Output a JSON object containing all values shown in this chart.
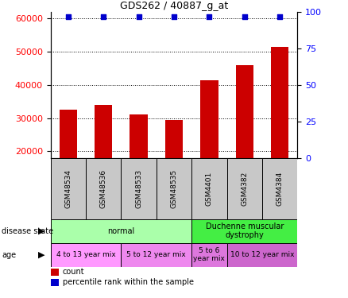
{
  "title": "GDS262 / 40887_g_at",
  "samples": [
    "GSM48534",
    "GSM48536",
    "GSM48533",
    "GSM48535",
    "GSM4401",
    "GSM4382",
    "GSM4384"
  ],
  "counts": [
    32500,
    34000,
    31000,
    29500,
    41500,
    46000,
    51500
  ],
  "ylim_left": [
    18000,
    62000
  ],
  "ylim_right": [
    0,
    100
  ],
  "yticks_left": [
    20000,
    30000,
    40000,
    50000,
    60000
  ],
  "yticks_right": [
    0,
    25,
    50,
    75,
    100
  ],
  "bar_color": "#cc0000",
  "dot_color": "#0000cc",
  "disease_state": [
    {
      "label": "normal",
      "start": 0,
      "end": 4,
      "color": "#aaffaa"
    },
    {
      "label": "Duchenne muscular\ndystrophy",
      "start": 4,
      "end": 7,
      "color": "#44ee44"
    }
  ],
  "age_groups": [
    {
      "label": "4 to 13 year mix",
      "start": 0,
      "end": 2,
      "color": "#ff99ff"
    },
    {
      "label": "5 to 12 year mix",
      "start": 2,
      "end": 4,
      "color": "#ee88ee"
    },
    {
      "label": "5 to 6\nyear mix",
      "start": 4,
      "end": 5,
      "color": "#dd77dd"
    },
    {
      "label": "10 to 12 year mix",
      "start": 5,
      "end": 7,
      "color": "#cc66cc"
    }
  ]
}
